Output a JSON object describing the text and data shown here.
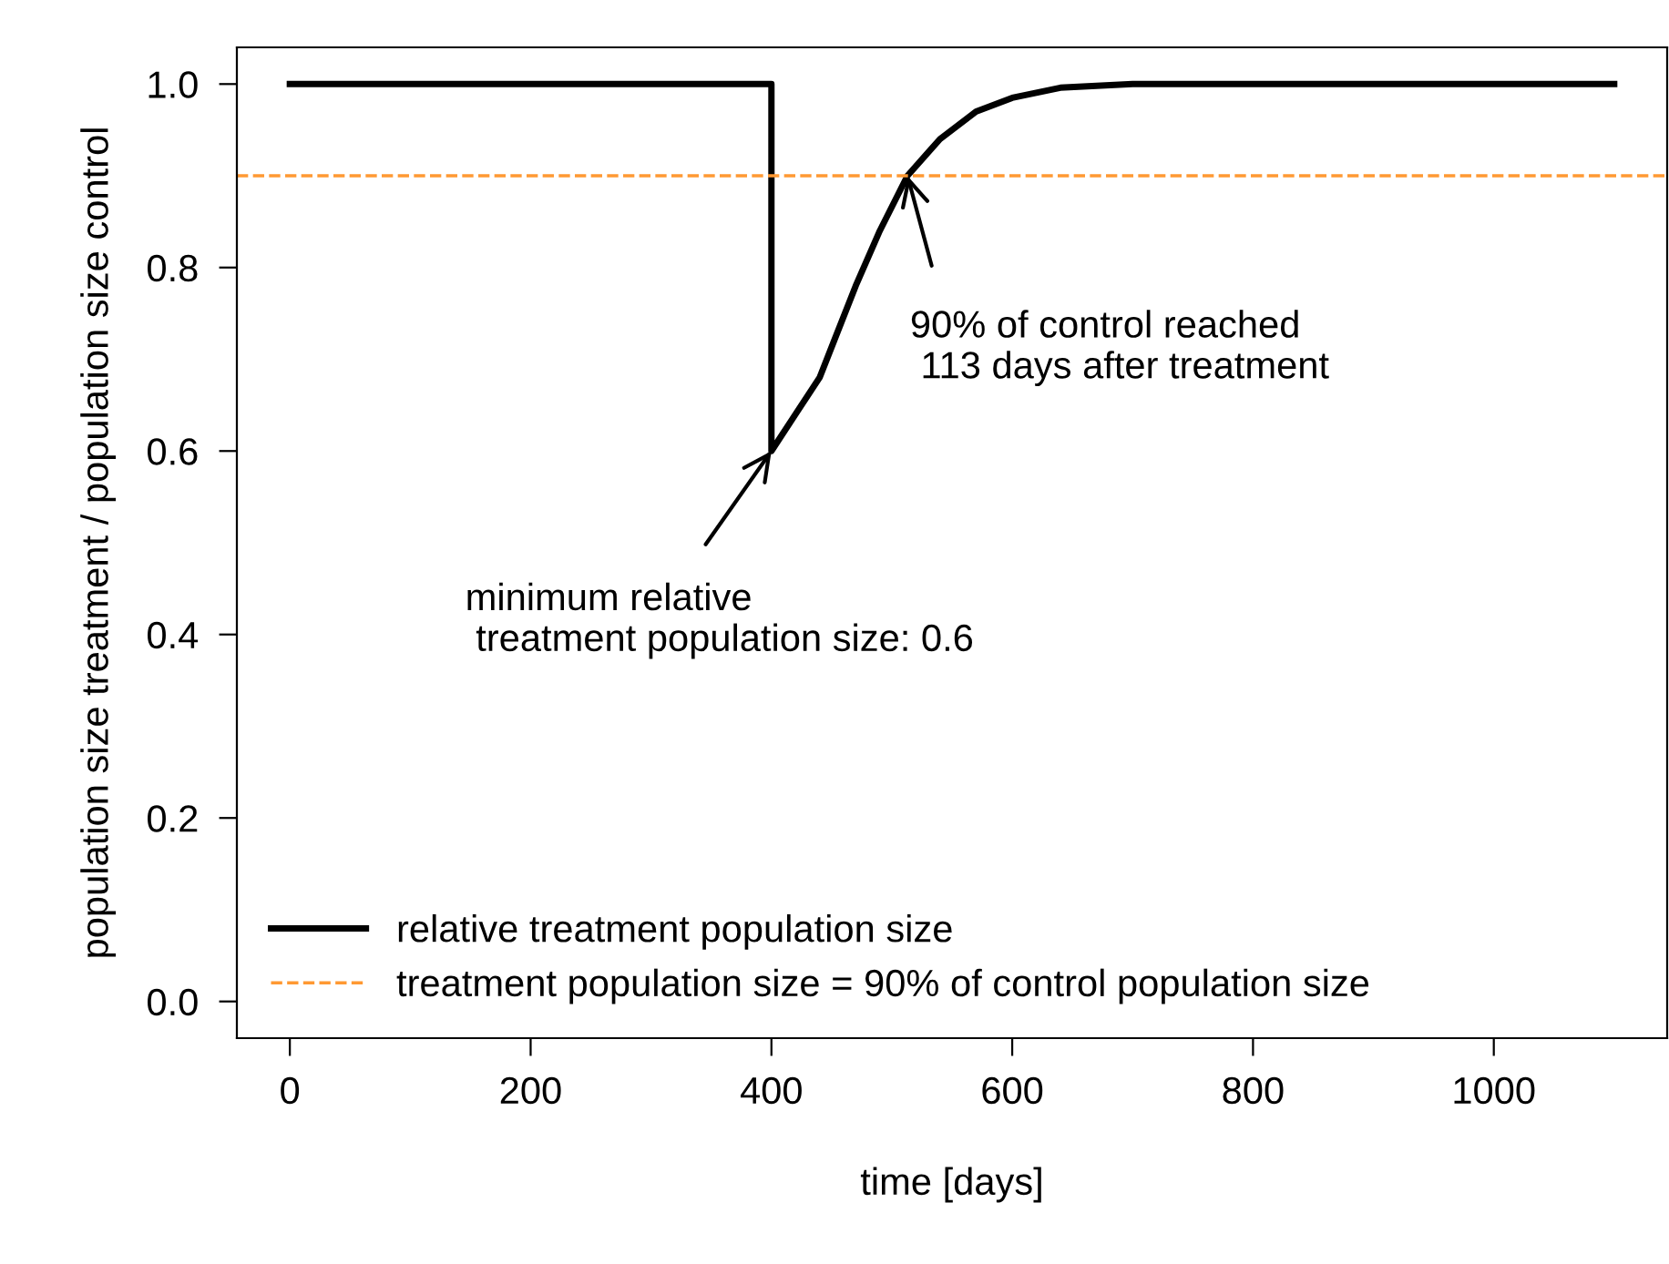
{
  "chart_data": {
    "type": "line",
    "xlabel": "time [days]",
    "ylabel": "population size treatment / population size control",
    "xlim": [
      -44,
      1144
    ],
    "ylim": [
      -0.04,
      1.04
    ],
    "xticks": [
      0,
      200,
      400,
      600,
      800,
      1000
    ],
    "yticks": [
      {
        "value": 0,
        "label": "0.0"
      },
      {
        "value": 0.2,
        "label": "0.2"
      },
      {
        "value": 0.4,
        "label": "0.4"
      },
      {
        "value": 0.6,
        "label": "0.6"
      },
      {
        "value": 0.8,
        "label": "0.8"
      },
      {
        "value": 1,
        "label": "1.0"
      }
    ],
    "series": [
      {
        "name": "relative treatment population size",
        "color": "#000000",
        "x": [
          0,
          400,
          400,
          420,
          440,
          452,
          470,
          490,
          513,
          540,
          570,
          600,
          640,
          700,
          1100
        ],
        "values": [
          1.0,
          1.0,
          0.6,
          0.64,
          0.68,
          0.72,
          0.78,
          0.84,
          0.9,
          0.94,
          0.97,
          0.985,
          0.996,
          1.0,
          1.0
        ]
      }
    ],
    "ref_lines": [
      {
        "axis": "y",
        "value": 0.9,
        "label": "treatment population size = 90% of control population size",
        "color": "#ff9933",
        "line_style": "dashed"
      }
    ],
    "annotations": [
      {
        "text": "minimum relative\n treatment population size: 0.6",
        "x": 400,
        "y": 0.6
      },
      {
        "text": "90% of control reached\n 113 days after treatment",
        "x": 513,
        "y": 0.9
      }
    ],
    "legend": "bottom left",
    "grid": false,
    "line_style": "solid",
    "marker": "none"
  }
}
